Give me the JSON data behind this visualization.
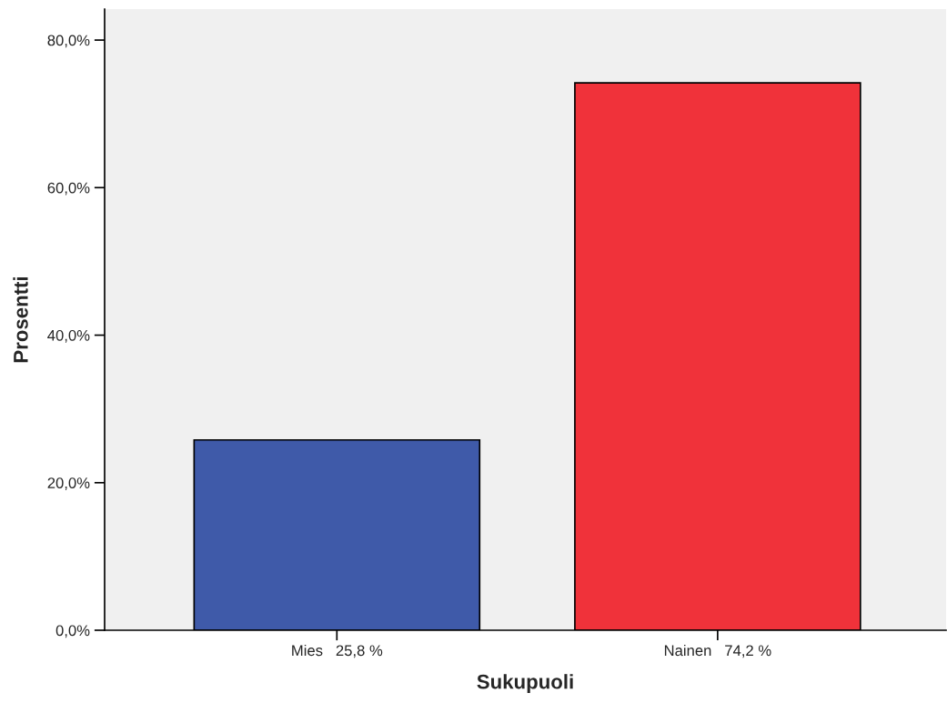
{
  "chart_data": {
    "type": "bar",
    "xlabel": "Sukupuoli",
    "ylabel": "Prosentti",
    "categories": [
      "Mies   25,8 %",
      "Nainen   74,2 %"
    ],
    "values": [
      25.8,
      74.2
    ],
    "colors": [
      "#3f5aa9",
      "#f0323a"
    ],
    "ylim": [
      0,
      84.2
    ],
    "yticks": [
      {
        "value": 0,
        "label": "0,0%"
      },
      {
        "value": 20,
        "label": "20,0%"
      },
      {
        "value": 40,
        "label": "40,0%"
      },
      {
        "value": 60,
        "label": "60,0%"
      },
      {
        "value": 80,
        "label": "80,0%"
      }
    ],
    "grid": false
  }
}
